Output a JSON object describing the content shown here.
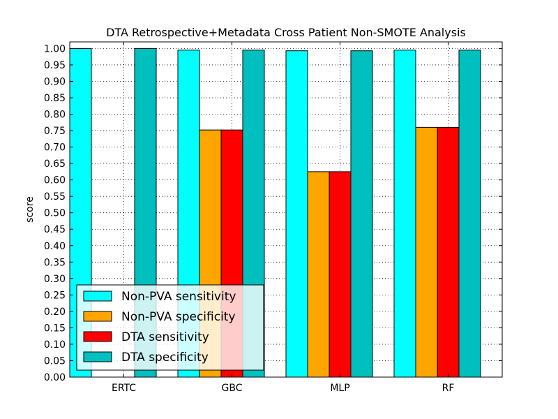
{
  "chart_data": {
    "type": "bar",
    "title": "DTA Retrospective+Metadata Cross Patient Non-SMOTE Analysis",
    "xlabel": "",
    "ylabel": "score",
    "categories": [
      "ERTC",
      "GBC",
      "MLP",
      "RF"
    ],
    "series": [
      {
        "name": "Non-PVA sensitivity",
        "color": "#00ffff",
        "values": [
          1.0,
          0.995,
          0.993,
          0.995
        ]
      },
      {
        "name": "Non-PVA specificity",
        "color": "#ffa500",
        "values": [
          0.0,
          0.752,
          0.625,
          0.76
        ]
      },
      {
        "name": "DTA sensitivity",
        "color": "#ff0000",
        "values": [
          0.0,
          0.752,
          0.625,
          0.76
        ]
      },
      {
        "name": "DTA specificity",
        "color": "#00bfbf",
        "values": [
          1.0,
          0.995,
          0.993,
          0.995
        ]
      }
    ],
    "ylim": [
      0.0,
      1.02
    ],
    "yticks": [
      "0.00",
      "0.05",
      "0.10",
      "0.15",
      "0.20",
      "0.25",
      "0.30",
      "0.35",
      "0.40",
      "0.45",
      "0.50",
      "0.55",
      "0.60",
      "0.65",
      "0.70",
      "0.75",
      "0.80",
      "0.85",
      "0.90",
      "0.95",
      "1.00"
    ],
    "grid": true,
    "legend_position": "lower-left"
  }
}
